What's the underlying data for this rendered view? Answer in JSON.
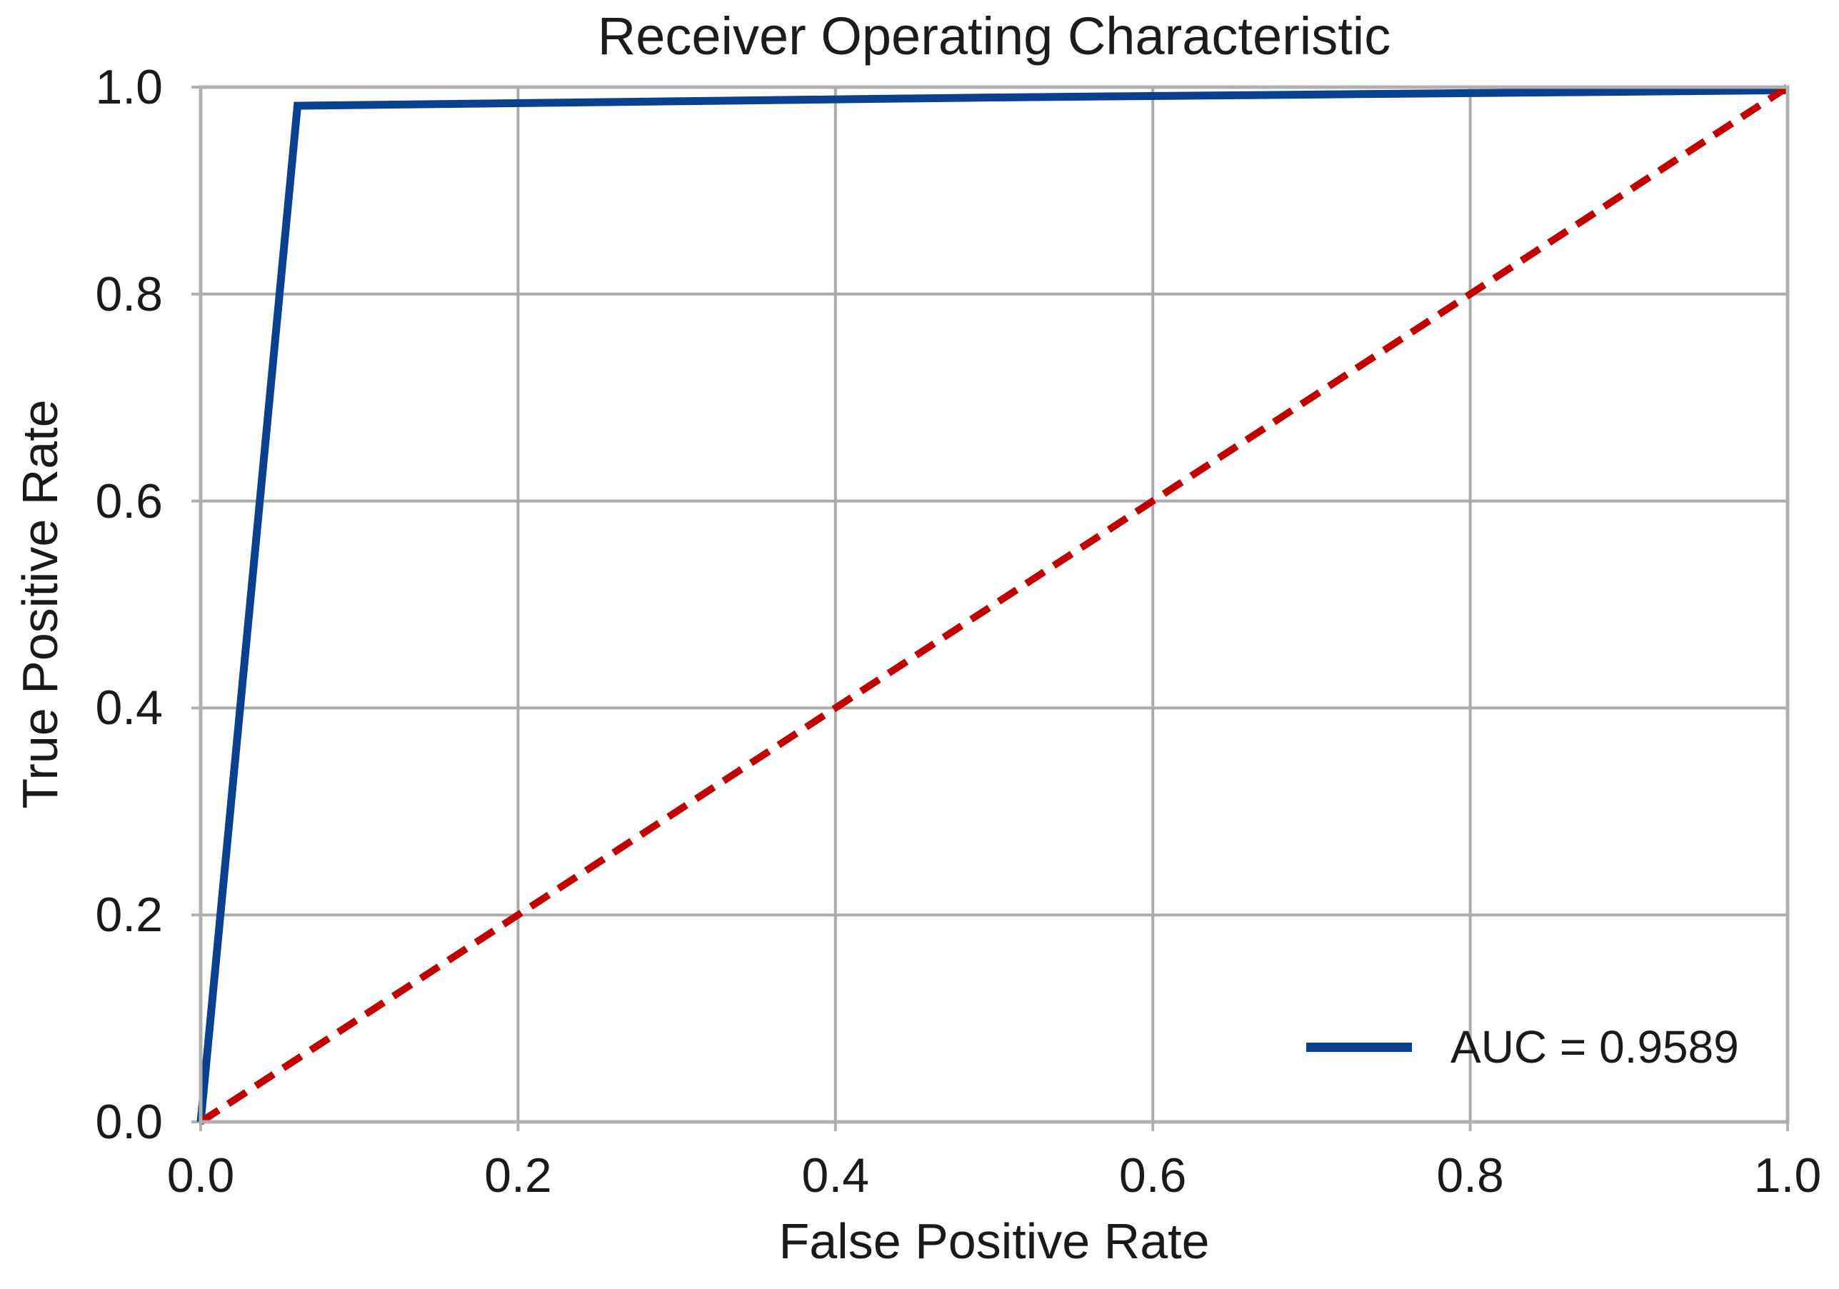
{
  "chart_data": {
    "type": "line",
    "title": "Receiver Operating Characteristic",
    "xlabel": "False Positive Rate",
    "ylabel": "True Positive Rate",
    "xlim": [
      0.0,
      1.0
    ],
    "ylim": [
      0.0,
      1.0
    ],
    "xticks": [
      0.0,
      0.2,
      0.4,
      0.6,
      0.8,
      1.0
    ],
    "yticks": [
      0.0,
      0.2,
      0.4,
      0.6,
      0.8,
      1.0
    ],
    "tick_decimals": 1,
    "grid": true,
    "auc": 0.9589,
    "colors": {
      "roc_line": "#09418e",
      "chance_line": "#c00000",
      "gridline": "#ababab",
      "frame": "#b0b0b0",
      "text": "#1a1a1a",
      "background": "#ffffff"
    },
    "legend": {
      "position": "lower-right",
      "entries": [
        {
          "label": "AUC = 0.9589",
          "color": "#09418e",
          "style": "solid"
        }
      ]
    },
    "series": [
      {
        "name": "ROC curve",
        "color": "#09418e",
        "style": "solid",
        "stroke_width": 11,
        "points": [
          [
            0.0,
            0.0
          ],
          [
            0.061,
            0.982
          ],
          [
            0.5,
            0.99
          ],
          [
            1.0,
            0.997
          ]
        ]
      },
      {
        "name": "chance diagonal",
        "color": "#c00000",
        "style": "dashed",
        "stroke_width": 10,
        "points": [
          [
            0.0,
            0.0
          ],
          [
            1.0,
            1.0
          ]
        ]
      }
    ]
  }
}
